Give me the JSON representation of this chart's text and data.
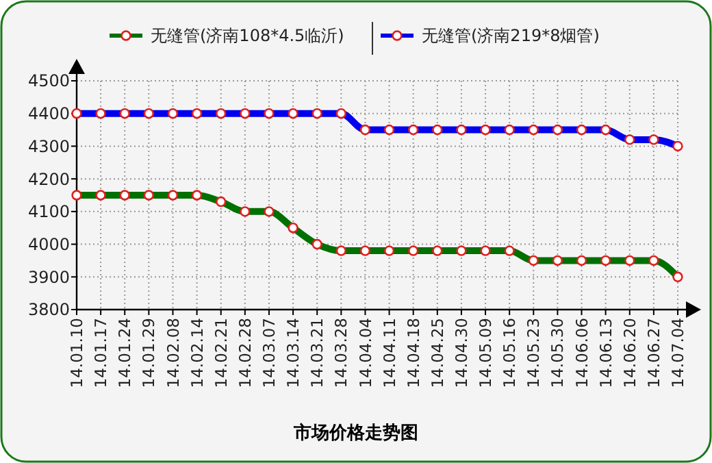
{
  "chart_data": {
    "type": "line",
    "title": "市场价格走势图",
    "categories": [
      "14.01.10",
      "14.01.17",
      "14.01.24",
      "14.01.29",
      "14.02.08",
      "14.02.14",
      "14.02.21",
      "14.02.28",
      "14.03.07",
      "14.03.14",
      "14.03.21",
      "14.03.28",
      "14.04.04",
      "14.04.11",
      "14.04.18",
      "14.04.25",
      "14.04.30",
      "14.05.09",
      "14.05.16",
      "14.05.23",
      "14.05.30",
      "14.06.06",
      "14.06.13",
      "14.06.20",
      "14.06.27",
      "14.07.04"
    ],
    "series": [
      {
        "name": "无缝管(济南108*4.5临沂)",
        "color": "#007000",
        "values": [
          4150,
          4150,
          4150,
          4150,
          4150,
          4150,
          4130,
          4100,
          4100,
          4050,
          4000,
          3980,
          3980,
          3980,
          3980,
          3980,
          3980,
          3980,
          3980,
          3950,
          3950,
          3950,
          3950,
          3950,
          3950,
          3900
        ]
      },
      {
        "name": "无缝管(济南219*8烟管)",
        "color": "#0000ee",
        "values": [
          4400,
          4400,
          4400,
          4400,
          4400,
          4400,
          4400,
          4400,
          4400,
          4400,
          4400,
          4400,
          4350,
          4350,
          4350,
          4350,
          4350,
          4350,
          4350,
          4350,
          4350,
          4350,
          4350,
          4320,
          4320,
          4300
        ]
      }
    ],
    "ylim": [
      3800,
      4500
    ],
    "yticks": [
      3800,
      3900,
      4000,
      4100,
      4200,
      4300,
      4400,
      4500
    ],
    "grid": true,
    "legend": "top",
    "marker": "circle",
    "line_style": "solid"
  }
}
